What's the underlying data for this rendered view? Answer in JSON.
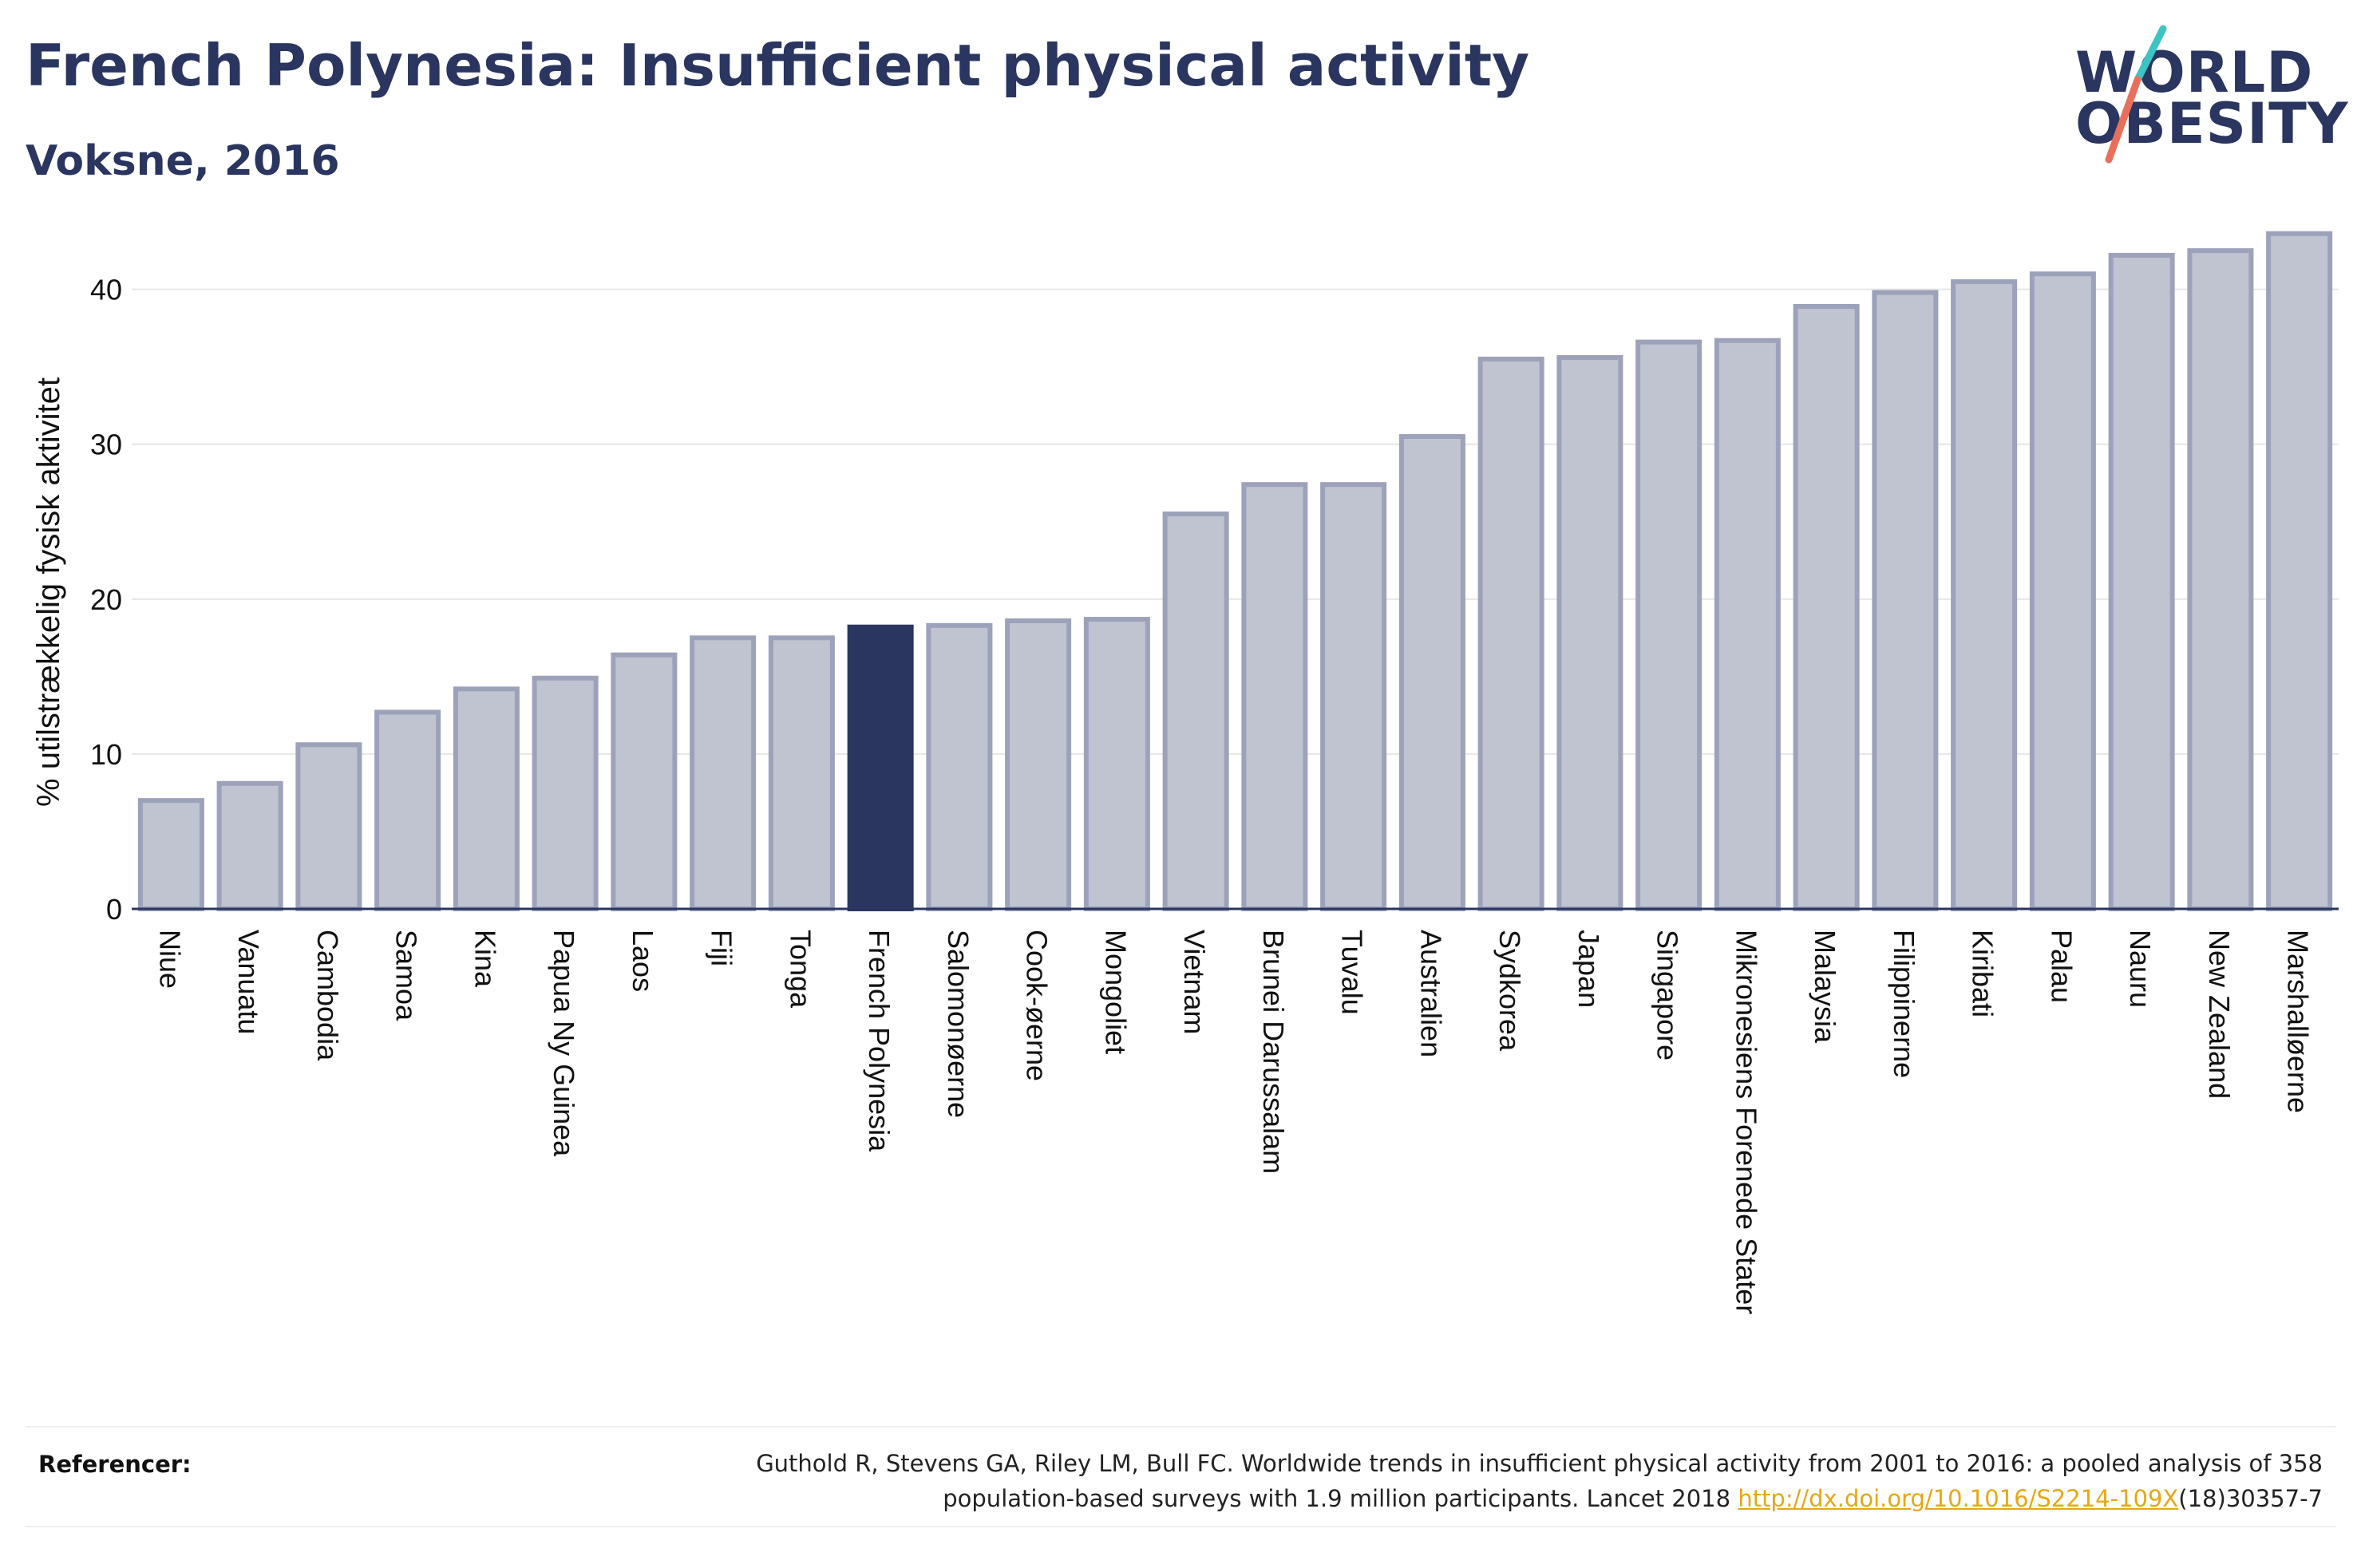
{
  "header": {
    "title": "French Polynesia: Insufficient physical activity",
    "subtitle": "Voksne, 2016"
  },
  "logo": {
    "line1": "WORLD",
    "line2": "OBESITY",
    "colors": {
      "text": "#2a3560",
      "slash_top": "#3cc4c4",
      "slash_bottom": "#e8705a"
    }
  },
  "colors": {
    "bar_default": "#c0c3d0",
    "bar_default_border": "#9da2bb",
    "bar_highlight": "#2a3560",
    "axis": "#2a3560",
    "grid": "#e6e6e6"
  },
  "chart_data": {
    "type": "bar",
    "title": "French Polynesia: Insufficient physical activity",
    "subtitle": "Voksne, 2016",
    "ylabel": "% utilstrækkelig fysisk aktivitet",
    "xlabel": "",
    "ylim": [
      0,
      44
    ],
    "yticks": [
      0,
      10,
      20,
      30,
      40
    ],
    "grid": true,
    "highlight": "French Polynesia",
    "categories": [
      "Niue",
      "Vanuatu",
      "Cambodia",
      "Samoa",
      "Kina",
      "Papua Ny Guinea",
      "Laos",
      "Fiji",
      "Tonga",
      "French Polynesia",
      "Salomonøerne",
      "Cook-øerne",
      "Mongoliet",
      "Vietnam",
      "Brunei Darussalam",
      "Tuvalu",
      "Australien",
      "Sydkorea",
      "Japan",
      "Singapore",
      "Mikronesiens Forenede Stater",
      "Malaysia",
      "Filippinerne",
      "Kiribati",
      "Palau",
      "Nauru",
      "New Zealand",
      "Marshalløerne"
    ],
    "values": [
      7.0,
      8.1,
      10.6,
      12.7,
      14.2,
      14.9,
      16.4,
      17.5,
      17.5,
      18.2,
      18.3,
      18.6,
      18.7,
      25.5,
      27.4,
      27.4,
      30.5,
      35.5,
      35.6,
      36.6,
      36.7,
      38.9,
      39.8,
      40.5,
      41.0,
      42.2,
      42.5,
      43.6
    ]
  },
  "footer": {
    "ref_label": "Referencer:",
    "ref_line1": "Guthold R, Stevens GA, Riley LM, Bull FC. Worldwide trends in insufficient physical activity from 2001 to 2016: a pooled analysis of 358",
    "ref_line2_before": "population-based surveys with 1.9 million participants. Lancet 2018 ",
    "ref_link": "http://dx.doi.org/10.1016/S2214-109X",
    "ref_line2_after": "(18)30357-7"
  }
}
